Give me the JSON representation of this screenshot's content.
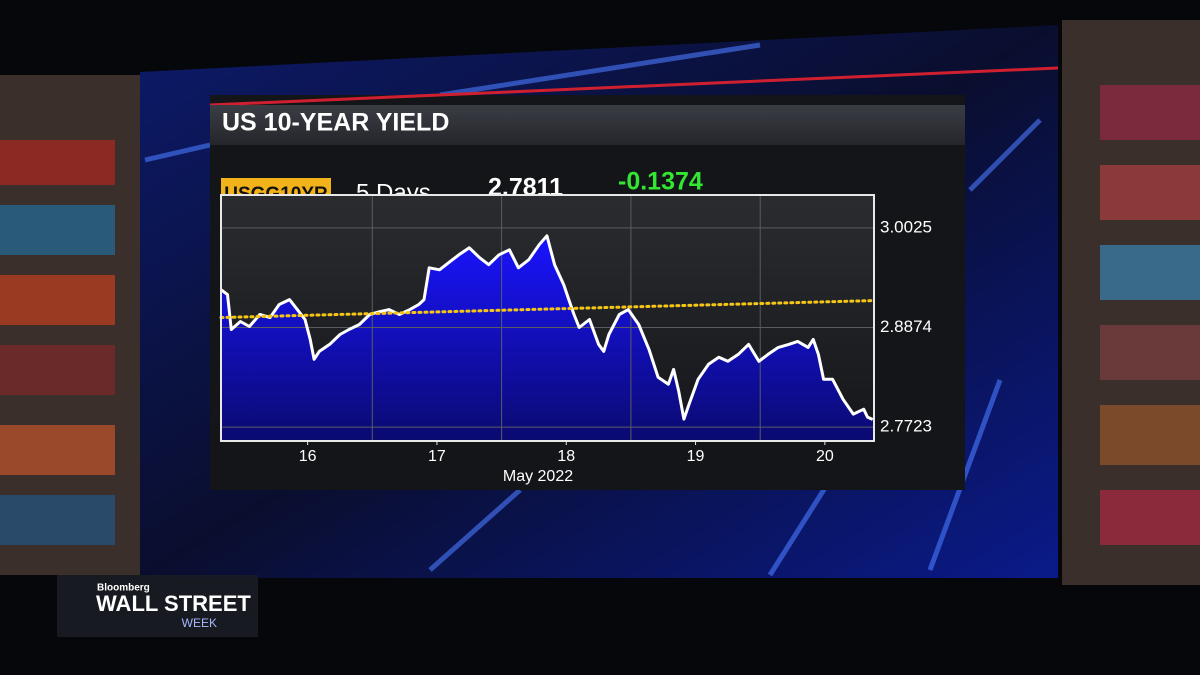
{
  "chart_data": {
    "type": "line",
    "title": "US 10-YEAR YIELD",
    "ticker": "USGG10YR",
    "period": "5 Days",
    "last_value": "2.7811",
    "net_change": "-0.1374",
    "x_label": "May 2022",
    "xlim": [
      15.33,
      20.38
    ],
    "xticks": [
      16,
      17,
      18,
      19,
      20
    ],
    "x_gridlines": [
      16.5,
      17.5,
      18.5,
      19.5
    ],
    "ylim": [
      2.7562,
      3.0405
    ],
    "yticks": [
      3.0025,
      2.8874,
      2.7723
    ],
    "grid": true,
    "series": [
      {
        "color": "#ffffff",
        "fill": "#1010e0",
        "x": [
          15.33,
          15.38,
          15.41,
          15.48,
          15.55,
          15.63,
          15.71,
          15.78,
          15.86,
          15.92,
          15.98,
          16.02,
          16.05,
          16.09,
          16.17,
          16.25,
          16.32,
          16.4,
          16.48,
          16.56,
          16.63,
          16.71,
          16.79,
          16.86,
          16.9,
          16.94,
          17.02,
          17.1,
          17.17,
          17.25,
          17.33,
          17.4,
          17.48,
          17.56,
          17.63,
          17.71,
          17.79,
          17.85,
          17.91,
          17.98,
          18.02,
          18.06,
          18.1,
          18.18,
          18.25,
          18.29,
          18.33,
          18.41,
          18.48,
          18.56,
          18.64,
          18.71,
          18.79,
          18.83,
          18.87,
          18.91,
          18.95,
          19.02,
          19.1,
          19.18,
          19.25,
          19.33,
          19.41,
          19.49,
          19.56,
          19.64,
          19.72,
          19.79,
          19.87,
          19.91,
          19.95,
          19.99,
          20.06,
          20.14,
          20.22,
          20.3,
          20.33,
          20.37
        ],
        "values": [
          2.9311,
          2.9254,
          2.8851,
          2.8943,
          2.8885,
          2.9024,
          2.8989,
          2.9139,
          2.9196,
          2.9081,
          2.8966,
          2.8736,
          2.8506,
          2.8598,
          2.8678,
          2.8793,
          2.8851,
          2.8908,
          2.9024,
          2.9058,
          2.9081,
          2.9024,
          2.9081,
          2.9139,
          2.9196,
          2.9564,
          2.9541,
          2.9634,
          2.9714,
          2.9795,
          2.968,
          2.9599,
          2.9714,
          2.9772,
          2.9564,
          2.9657,
          2.9829,
          2.9933,
          2.9599,
          2.9369,
          2.9196,
          2.9024,
          2.8874,
          2.8966,
          2.8678,
          2.8598,
          2.8793,
          2.9024,
          2.9081,
          2.8908,
          2.8621,
          2.8298,
          2.8218,
          2.839,
          2.8137,
          2.7815,
          2.7988,
          2.8275,
          2.8448,
          2.8529,
          2.8483,
          2.8563,
          2.8678,
          2.8483,
          2.8563,
          2.8644,
          2.8678,
          2.8713,
          2.8644,
          2.8736,
          2.8563,
          2.8275,
          2.8275,
          2.8045,
          2.7873,
          2.793,
          2.7838,
          2.7811
        ]
      }
    ],
    "trendline": {
      "color": "#f5c518",
      "x": [
        15.33,
        20.38
      ],
      "values": [
        2.8989,
        2.9185
      ]
    }
  },
  "branding": {
    "network": "Bloomberg",
    "show_line1": "WALL STREET",
    "show_line2": "WEEK"
  }
}
